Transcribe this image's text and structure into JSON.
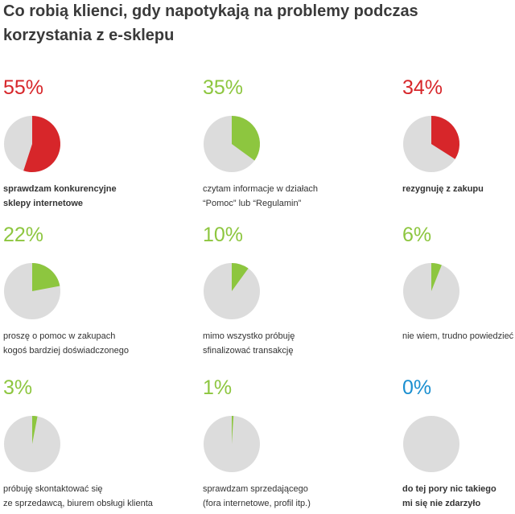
{
  "title": [
    "Co robią klienci, gdy napotykają na problemy podczas",
    "korzystania z e-sklepu"
  ],
  "chart_data": [
    {
      "type": "pie",
      "values": [
        55
      ],
      "value_labels": [
        "55%"
      ],
      "caption": [
        "sprawdzam konkurencyjne",
        "sklepy internetowe"
      ],
      "color": "#d7262a",
      "caption_highlight": true
    },
    {
      "type": "pie",
      "values": [
        35
      ],
      "value_labels": [
        "35%"
      ],
      "caption": [
        "czytam informacje w działach",
        "“Pomoc” lub “Regulamin”"
      ],
      "color": "#8dc63f",
      "caption_highlight": false
    },
    {
      "type": "pie",
      "values": [
        34
      ],
      "value_labels": [
        "34%"
      ],
      "caption": [
        "rezygnuję z zakupu"
      ],
      "color": "#d7262a",
      "caption_highlight": true
    },
    {
      "type": "pie",
      "values": [
        22
      ],
      "value_labels": [
        "22%"
      ],
      "caption": [
        "proszę o pomoc w zakupach",
        "kogoś bardziej doświadczonego"
      ],
      "color": "#8dc63f",
      "caption_highlight": false
    },
    {
      "type": "pie",
      "values": [
        10
      ],
      "value_labels": [
        "10%"
      ],
      "caption": [
        "mimo wszystko próbuję",
        "sfinalizować transakcję"
      ],
      "color": "#8dc63f",
      "caption_highlight": false
    },
    {
      "type": "pie",
      "values": [
        6
      ],
      "value_labels": [
        "6%"
      ],
      "caption": [
        "nie wiem, trudno powiedzieć"
      ],
      "color": "#8dc63f",
      "caption_highlight": false
    },
    {
      "type": "pie",
      "values": [
        3
      ],
      "value_labels": [
        "3%"
      ],
      "caption": [
        "próbuję skontaktować się",
        "ze sprzedawcą, biurem obsługi klienta"
      ],
      "color": "#8dc63f",
      "caption_highlight": false
    },
    {
      "type": "pie",
      "values": [
        1
      ],
      "value_labels": [
        "1%"
      ],
      "caption": [
        "sprawdzam sprzedającego",
        "(fora internetowe, profil itp.)"
      ],
      "color": "#8dc63f",
      "caption_highlight": false
    },
    {
      "type": "pie",
      "values": [
        0
      ],
      "value_labels": [
        "0%"
      ],
      "caption": [
        "do tej pory nic takiego",
        "mi się nie zdarzyło"
      ],
      "color": "#1a8fd0",
      "caption_highlight": true
    }
  ]
}
